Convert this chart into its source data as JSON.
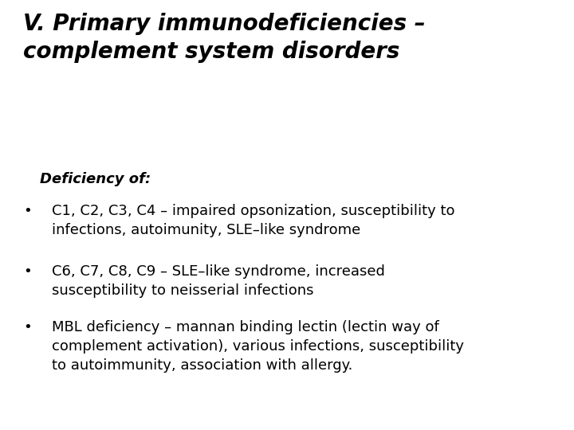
{
  "title_line1": "V. Primary immunodeficiencies –",
  "title_line2": "complement system disorders",
  "subheading": "Deficiency of:",
  "bullet1": "C1, C2, C3, C4 – impaired opsonization, susceptibility to\ninfections, autoimunity, SLE–like syndrome",
  "bullet2": "C6, C7, C8, C9 – SLE–like syndrome, increased\nsusceptibility to neisserial infections",
  "bullet3": "MBL deficiency – mannan binding lectin (lectin way of\ncomplement activation), various infections, susceptibility\nto autoimmunity, association with allergy.",
  "background_color": "#ffffff",
  "text_color": "#000000",
  "title_fontsize": 20,
  "subheading_fontsize": 13,
  "body_fontsize": 13,
  "bullet_char": "•"
}
